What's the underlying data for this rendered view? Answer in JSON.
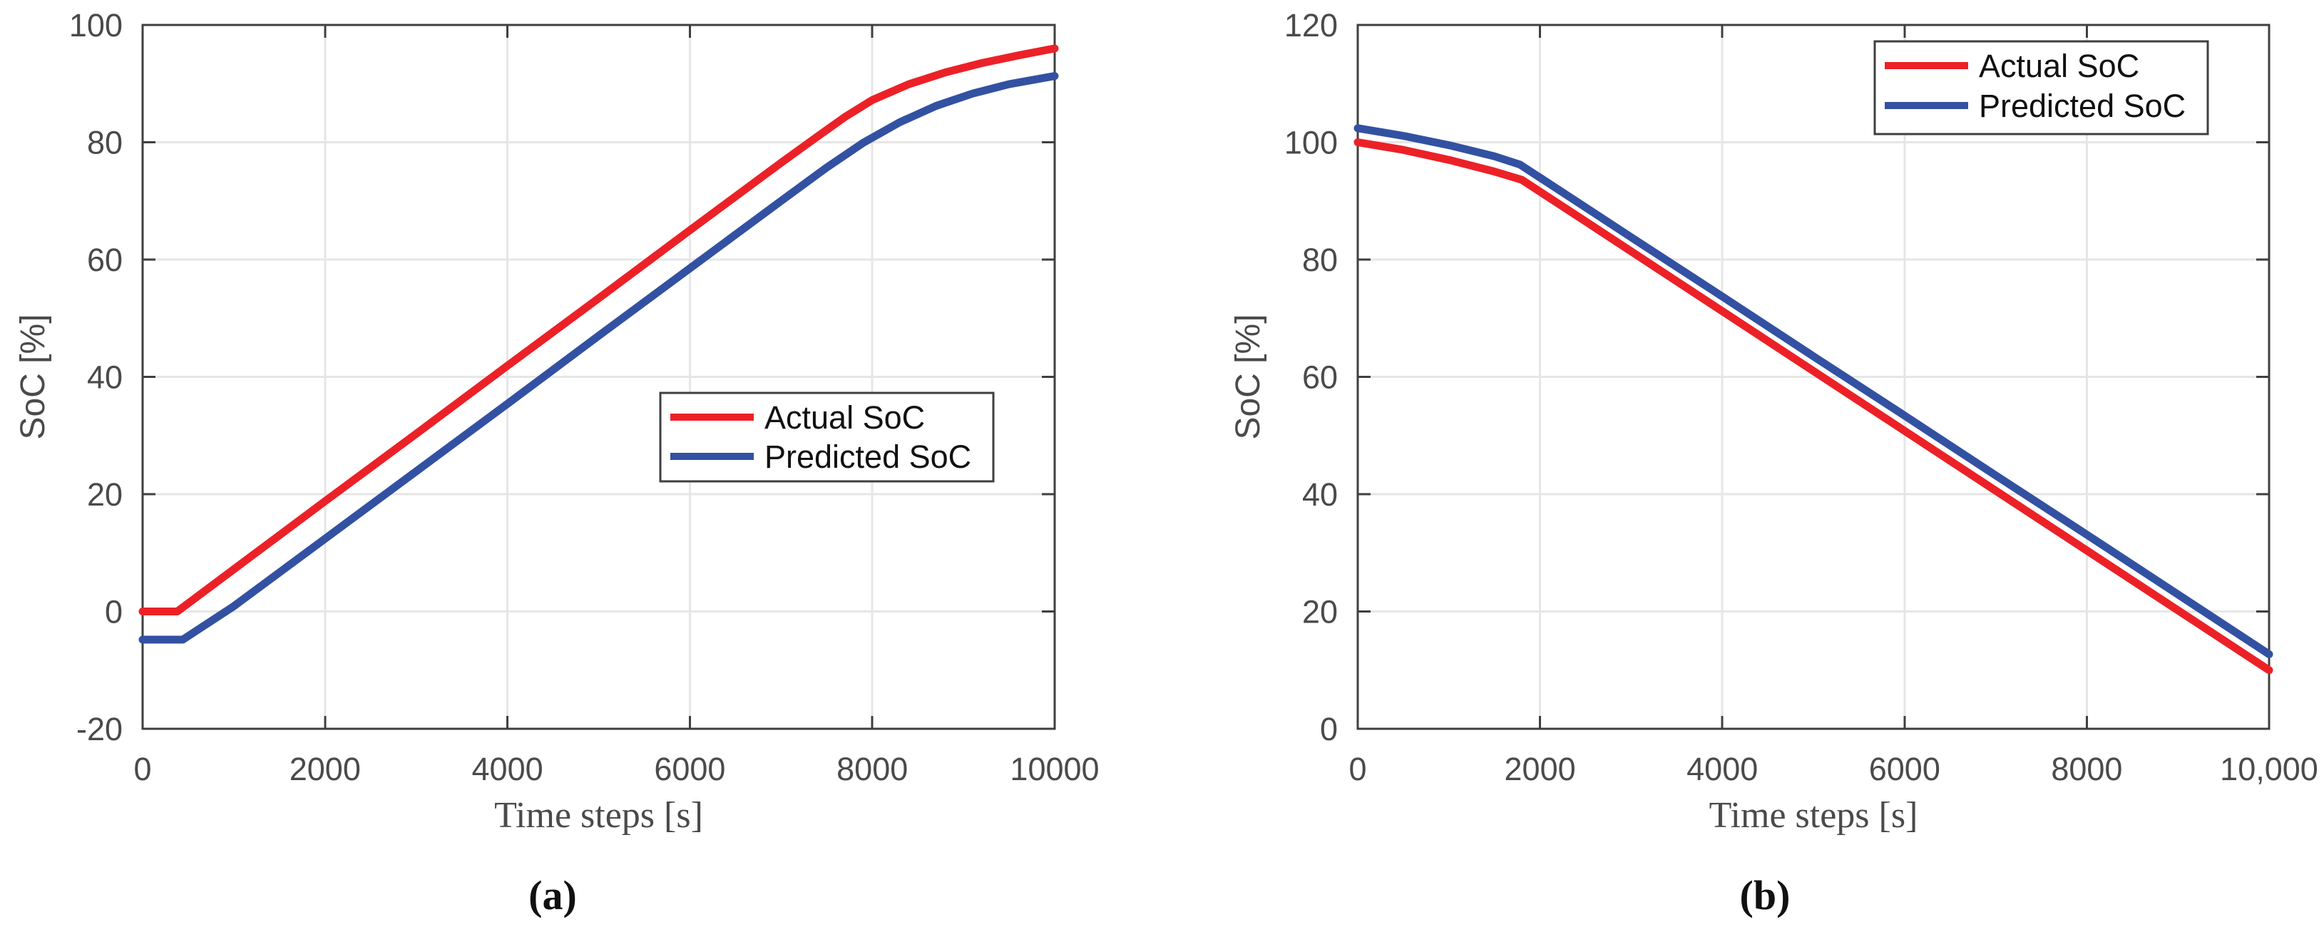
{
  "figure": {
    "background": "#ffffff",
    "axis_color": "#3f3f3f",
    "grid_color": "#e6e6e6",
    "tick_label_color": "#4a4a4a",
    "label_color": "#4a4a4a",
    "legend_text_color": "#111111",
    "legend_border_color": "#3f3f3f"
  },
  "chart_data": [
    {
      "type": "line",
      "panel": "a",
      "caption": "(a)",
      "title": "",
      "xlabel": "Time steps [s]",
      "ylabel": "SoC [%]",
      "xlim": [
        0,
        10000
      ],
      "ylim": [
        -20,
        100
      ],
      "grid": true,
      "legend_position": "inside-center-right",
      "x_ticks": [
        0,
        2000,
        4000,
        6000,
        8000,
        10000
      ],
      "x_tick_labels": [
        "0",
        "2000",
        "4000",
        "6000",
        "8000",
        "10000"
      ],
      "y_ticks": [
        -20,
        0,
        20,
        40,
        60,
        80,
        100
      ],
      "y_tick_labels": [
        "-20",
        "0",
        "20",
        "40",
        "60",
        "80",
        "100"
      ],
      "series": [
        {
          "name": "Actual SoC",
          "color": "#ec2127",
          "points": [
            [
              0,
              0
            ],
            [
              380,
              0
            ],
            [
              1000,
              7.2
            ],
            [
              2000,
              18.8
            ],
            [
              3000,
              30.3
            ],
            [
              4000,
              41.9
            ],
            [
              5000,
              53.4
            ],
            [
              6000,
              65
            ],
            [
              7000,
              76.5
            ],
            [
              7400,
              81
            ],
            [
              7700,
              84.3
            ],
            [
              8000,
              87.2
            ],
            [
              8400,
              89.9
            ],
            [
              8800,
              91.9
            ],
            [
              9200,
              93.5
            ],
            [
              9600,
              94.8
            ],
            [
              10000,
              96
            ]
          ]
        },
        {
          "name": "Predicted SoC",
          "color": "#3351a2",
          "points": [
            [
              0,
              -4.8
            ],
            [
              440,
              -4.8
            ],
            [
              1000,
              0.9
            ],
            [
              2000,
              12.4
            ],
            [
              3000,
              23.9
            ],
            [
              4000,
              35.4
            ],
            [
              5000,
              47
            ],
            [
              6000,
              58.5
            ],
            [
              7000,
              70
            ],
            [
              7500,
              75.7
            ],
            [
              7900,
              79.9
            ],
            [
              8300,
              83.4
            ],
            [
              8700,
              86.2
            ],
            [
              9100,
              88.3
            ],
            [
              9500,
              89.9
            ],
            [
              10000,
              91.3
            ]
          ]
        }
      ]
    },
    {
      "type": "line",
      "panel": "b",
      "caption": "(b)",
      "title": "",
      "xlabel": "Time steps [s]",
      "ylabel": "SoC [%]",
      "xlim": [
        0,
        10000
      ],
      "ylim": [
        0,
        120
      ],
      "grid": true,
      "legend_position": "top-right-inside",
      "x_ticks": [
        0,
        2000,
        4000,
        6000,
        8000,
        10000
      ],
      "x_tick_labels": [
        "0",
        "2000",
        "4000",
        "6000",
        "8000",
        "10,000"
      ],
      "y_ticks": [
        0,
        20,
        40,
        60,
        80,
        100,
        120
      ],
      "y_tick_labels": [
        "0",
        "20",
        "40",
        "60",
        "80",
        "100",
        "120"
      ],
      "series": [
        {
          "name": "Actual SoC",
          "color": "#ec2127",
          "points": [
            [
              0,
              100
            ],
            [
              500,
              98.7
            ],
            [
              1000,
              97
            ],
            [
              1500,
              95
            ],
            [
              1800,
              93.6
            ],
            [
              2500,
              86.5
            ],
            [
              3000,
              81.4
            ],
            [
              4000,
              71.2
            ],
            [
              5000,
              61
            ],
            [
              6000,
              50.8
            ],
            [
              7000,
              40.6
            ],
            [
              8000,
              30.4
            ],
            [
              9000,
              20.2
            ],
            [
              10000,
              10
            ]
          ]
        },
        {
          "name": "Predicted SoC",
          "color": "#3351a2",
          "points": [
            [
              0,
              102.4
            ],
            [
              500,
              101.1
            ],
            [
              1000,
              99.5
            ],
            [
              1500,
              97.6
            ],
            [
              1780,
              96.2
            ],
            [
              2500,
              88.9
            ],
            [
              3000,
              83.8
            ],
            [
              4000,
              73.7
            ],
            [
              5000,
              63.5
            ],
            [
              6000,
              53.4
            ],
            [
              7000,
              43.2
            ],
            [
              8000,
              33.1
            ],
            [
              9000,
              22.9
            ],
            [
              10000,
              12.7
            ]
          ]
        }
      ]
    }
  ]
}
